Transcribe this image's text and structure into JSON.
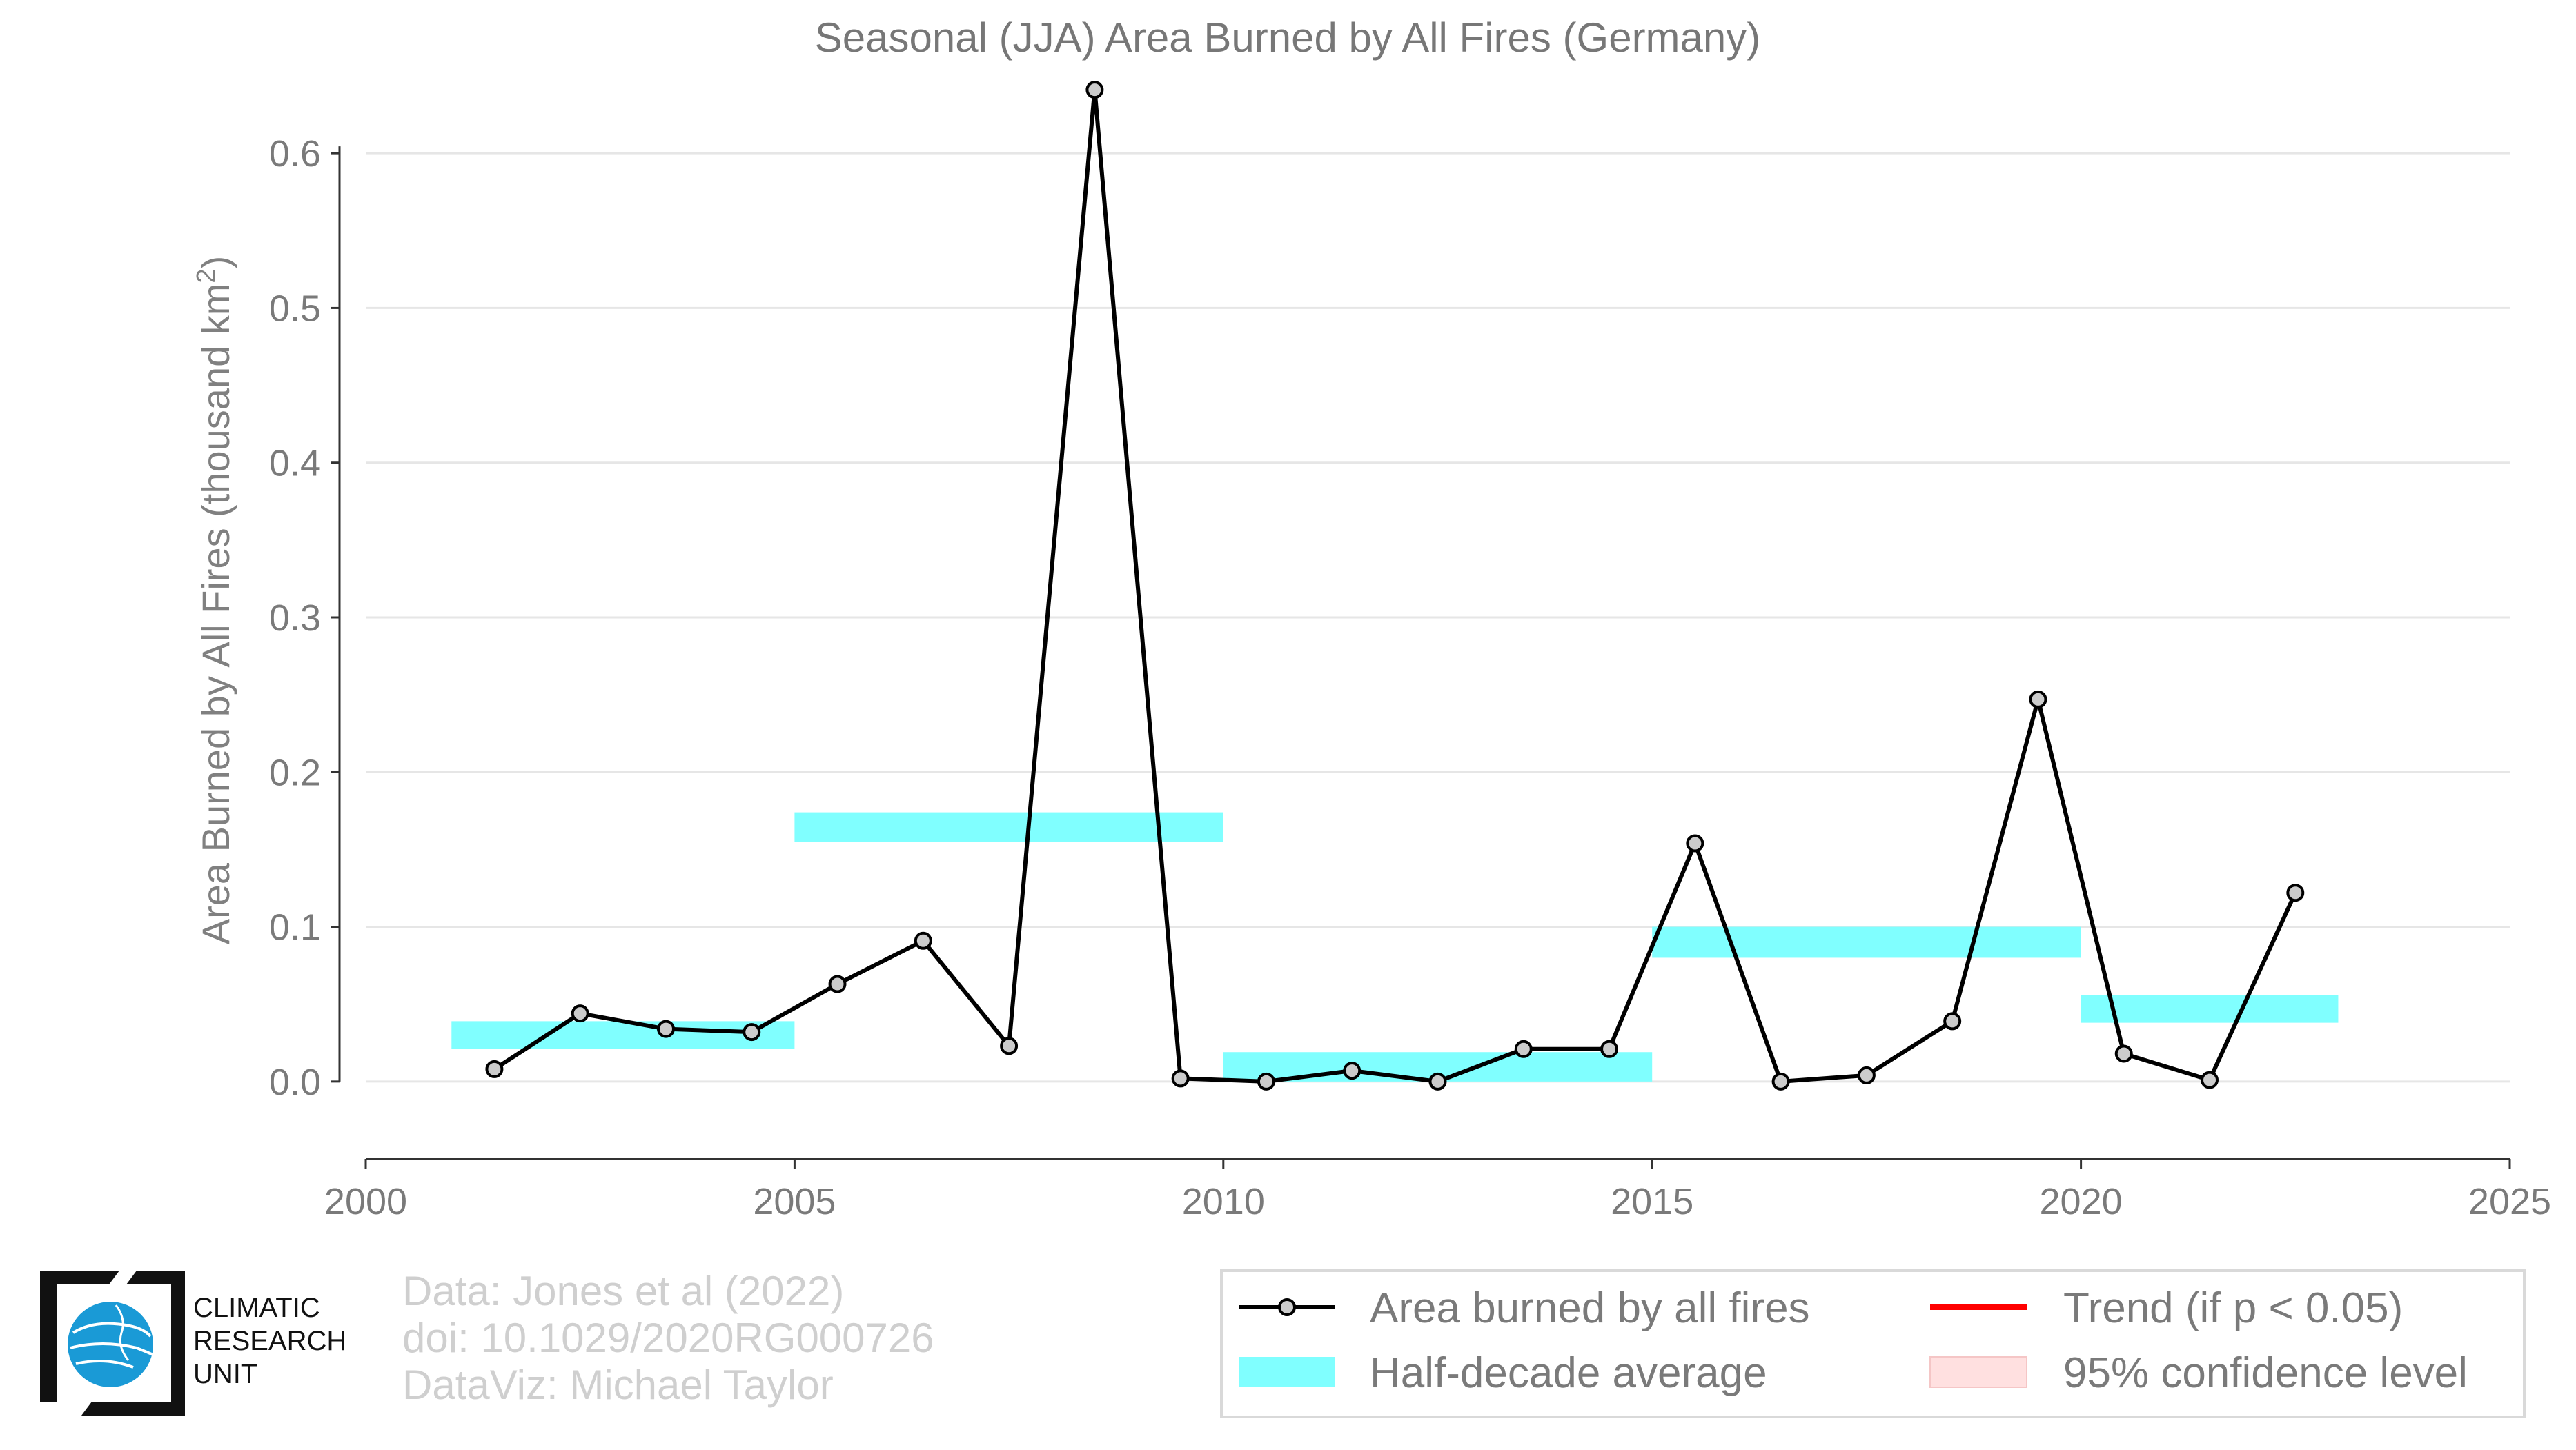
{
  "chart_data": {
    "type": "line",
    "title": "Seasonal (JJA) Area Burned by All Fires (Germany)",
    "xlabel": "",
    "ylabel": "Area Burned by All Fires (thousand km",
    "ylabel_superscript": "2",
    "ylabel_close": ")",
    "xlim": [
      2000,
      2025
    ],
    "ylim": [
      -0.05,
      0.65
    ],
    "xticks": [
      "2000",
      "2005",
      "2010",
      "2015",
      "2020",
      "2025"
    ],
    "yticks": [
      "0.0",
      "0.1",
      "0.2",
      "0.3",
      "0.4",
      "0.5",
      "0.6"
    ],
    "grid": true,
    "series": [
      {
        "name": "Area burned by all fires",
        "color": "#000000",
        "marker_fill": "#cccccc",
        "x": [
          2001.5,
          2002.5,
          2003.5,
          2004.5,
          2005.5,
          2006.5,
          2007.5,
          2008.5,
          2009.5,
          2010.5,
          2011.5,
          2012.5,
          2013.5,
          2014.5,
          2015.5,
          2016.5,
          2017.5,
          2018.5,
          2019.5,
          2020.5,
          2021.5,
          2022.5
        ],
        "values": [
          0.008,
          0.044,
          0.034,
          0.032,
          0.063,
          0.091,
          0.023,
          0.641,
          0.002,
          0.0,
          0.007,
          0.0,
          0.021,
          0.021,
          0.154,
          0.0,
          0.004,
          0.039,
          0.247,
          0.018,
          0.001,
          0.122
        ]
      }
    ],
    "half_decade_averages": {
      "name": "Half-decade average",
      "color": "#80ffff",
      "bands": [
        {
          "start": 2001,
          "end": 2005,
          "low": 0.021,
          "high": 0.039
        },
        {
          "start": 2005,
          "end": 2010,
          "low": 0.155,
          "high": 0.174
        },
        {
          "start": 2010,
          "end": 2015,
          "low": 0.0,
          "high": 0.019
        },
        {
          "start": 2015,
          "end": 2020,
          "low": 0.08,
          "high": 0.1
        },
        {
          "start": 2020,
          "end": 2023,
          "low": 0.038,
          "high": 0.056
        }
      ]
    },
    "legend": {
      "placement": "bottom-right",
      "entries": [
        {
          "label": "Area burned by all fires",
          "kind": "line-marker",
          "color": "#000000"
        },
        {
          "label": "Trend (if p < 0.05)",
          "kind": "line",
          "color": "#ff0000"
        },
        {
          "label": "Half-decade average",
          "kind": "band",
          "color": "#80ffff"
        },
        {
          "label": "95% confidence level",
          "kind": "band",
          "color": "#ffe0e0"
        }
      ]
    }
  },
  "credits": {
    "line1": "Data: Jones et al (2022)",
    "line2": "doi: 10.1029/2020RG000726",
    "line3": "DataViz: Michael Taylor"
  },
  "logo": {
    "line1": "CLIMATIC",
    "line2": "RESEARCH",
    "line3": "UNIT",
    "globe_color": "#1a9ad6"
  }
}
